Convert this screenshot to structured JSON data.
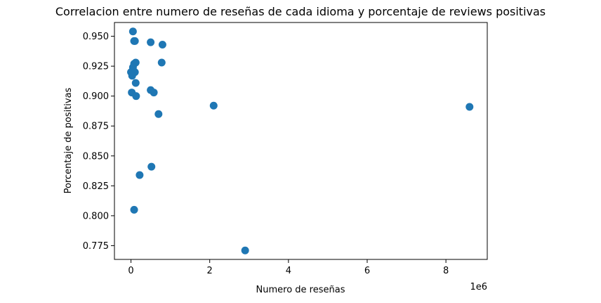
{
  "chart_data": {
    "type": "scatter",
    "title": "Correlacion entre numero de reseñas de cada idioma y porcentaje de reviews positivas",
    "xlabel": "Numero de reseñas",
    "ylabel": "Porcentaje de positivas",
    "x_offset_label": "1e6",
    "xlim": [
      -0.42,
      9.05
    ],
    "ylim": [
      0.7635,
      0.9615
    ],
    "x_ticks": [
      0,
      2,
      4,
      6,
      8
    ],
    "x_tick_labels": [
      "0",
      "2",
      "4",
      "6",
      "8"
    ],
    "y_ticks": [
      0.775,
      0.8,
      0.825,
      0.85,
      0.875,
      0.9,
      0.925,
      0.95
    ],
    "y_tick_labels": [
      "0.775",
      "0.800",
      "0.825",
      "0.850",
      "0.875",
      "0.900",
      "0.925",
      "0.950"
    ],
    "grid": false,
    "marker_color": "#1f77b4",
    "x_units_note": "x values in millions (×1e6)",
    "points": [
      {
        "x": 0.05,
        "y": 0.954
      },
      {
        "x": 0.08,
        "y": 0.946
      },
      {
        "x": 0.1,
        "y": 0.946
      },
      {
        "x": 0.5,
        "y": 0.945
      },
      {
        "x": 0.8,
        "y": 0.943
      },
      {
        "x": 0.78,
        "y": 0.928
      },
      {
        "x": 0.12,
        "y": 0.928
      },
      {
        "x": 0.08,
        "y": 0.927
      },
      {
        "x": 0.05,
        "y": 0.924
      },
      {
        "x": 0.0,
        "y": 0.92
      },
      {
        "x": 0.1,
        "y": 0.92
      },
      {
        "x": 0.03,
        "y": 0.917
      },
      {
        "x": 0.12,
        "y": 0.911
      },
      {
        "x": 0.5,
        "y": 0.905
      },
      {
        "x": 0.58,
        "y": 0.903
      },
      {
        "x": 0.02,
        "y": 0.903
      },
      {
        "x": 0.13,
        "y": 0.9
      },
      {
        "x": 2.1,
        "y": 0.892
      },
      {
        "x": 8.6,
        "y": 0.891
      },
      {
        "x": 0.7,
        "y": 0.885
      },
      {
        "x": 0.52,
        "y": 0.841
      },
      {
        "x": 0.22,
        "y": 0.834
      },
      {
        "x": 0.08,
        "y": 0.805
      },
      {
        "x": 2.9,
        "y": 0.771
      }
    ]
  }
}
